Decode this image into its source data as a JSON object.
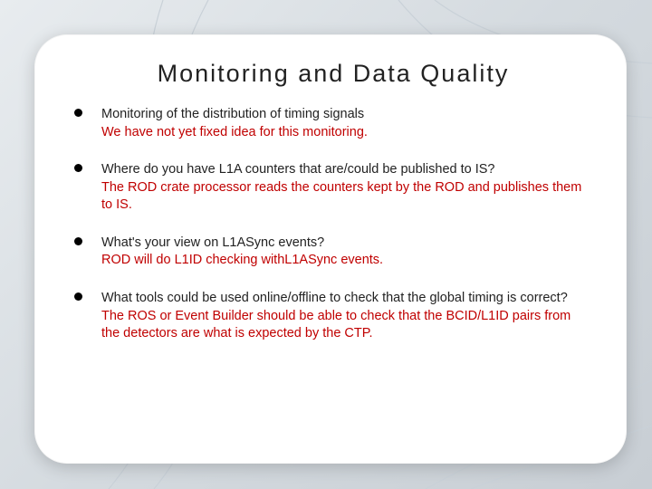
{
  "slide": {
    "title": "Monitoring and Data Quality",
    "title_fontsize": 27,
    "title_letterspacing": 2,
    "title_color": "#222222",
    "background_gradient": [
      "#e8ecef",
      "#d4dadf",
      "#c8ced4"
    ],
    "panel_bg": "#ffffff",
    "panel_radius": 36,
    "question_color": "#222222",
    "answer_color": "#c00000",
    "body_fontsize": 14.5,
    "bullets": [
      {
        "question": "Monitoring of the distribution of timing signals",
        "answer": "We have not yet fixed idea for this monitoring."
      },
      {
        "question": "Where do you have L1A counters that are/could be published to IS?",
        "answer": "The ROD crate processor reads the counters kept by the ROD and publishes them to IS."
      },
      {
        "question": "What's your view on L1ASync events?",
        "answer": "ROD will do L1ID checking withL1ASync events."
      },
      {
        "question": "What tools could be used online/offline to check that the global timing is correct?",
        "answer": "The ROS or Event Builder should be able to check that the BCID/L1ID pairs from the detectors are what is expected by the CTP."
      }
    ],
    "curves": {
      "stroke_color": "#c9d1d8",
      "stroke_width": 1.2,
      "paths": [
        "M180 0 Q140 120 180 270 Q220 420 120 540",
        "M230 0 Q150 150 210 300 Q260 430 170 540",
        "M720 70 Q560 60 480 0",
        "M720 130 Q540 120 440 0",
        "M720 470 Q600 510 520 540",
        "M720 420 Q580 480 470 540"
      ]
    }
  }
}
